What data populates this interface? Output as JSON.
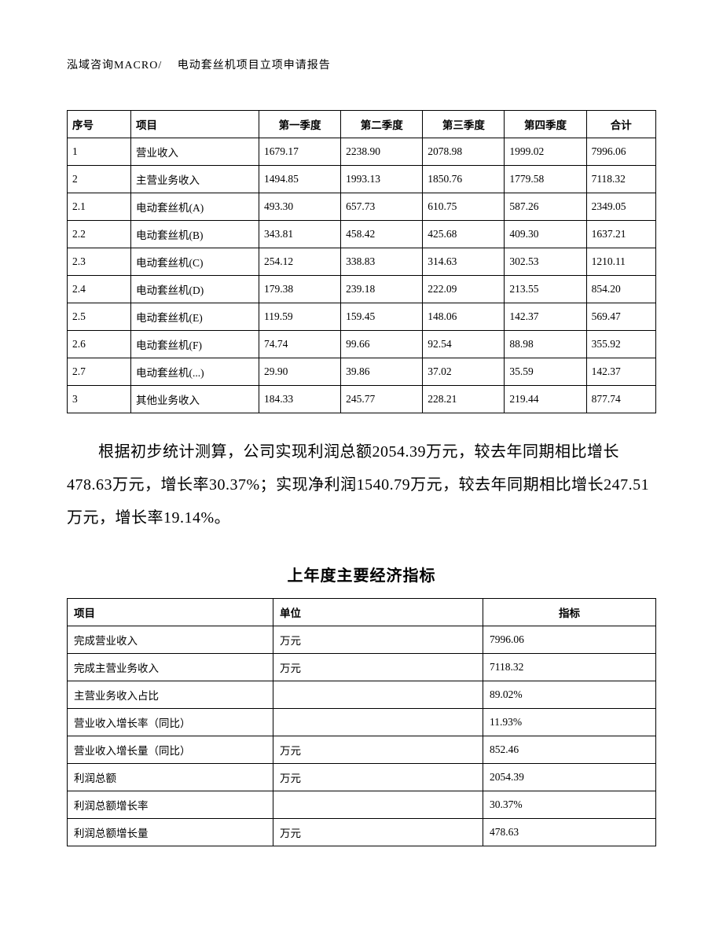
{
  "header": "泓域咨询MACRO/　 电动套丝机项目立项申请报告",
  "table1": {
    "headers": [
      "序号",
      "项目",
      "第一季度",
      "第二季度",
      "第三季度",
      "第四季度",
      "合计"
    ],
    "rows": [
      [
        "1",
        "营业收入",
        "1679.17",
        "2238.90",
        "2078.98",
        "1999.02",
        "7996.06"
      ],
      [
        "2",
        "主营业务收入",
        "1494.85",
        "1993.13",
        "1850.76",
        "1779.58",
        "7118.32"
      ],
      [
        "2.1",
        "电动套丝机(A)",
        "493.30",
        "657.73",
        "610.75",
        "587.26",
        "2349.05"
      ],
      [
        "2.2",
        "电动套丝机(B)",
        "343.81",
        "458.42",
        "425.68",
        "409.30",
        "1637.21"
      ],
      [
        "2.3",
        "电动套丝机(C)",
        "254.12",
        "338.83",
        "314.63",
        "302.53",
        "1210.11"
      ],
      [
        "2.4",
        "电动套丝机(D)",
        "179.38",
        "239.18",
        "222.09",
        "213.55",
        "854.20"
      ],
      [
        "2.5",
        "电动套丝机(E)",
        "119.59",
        "159.45",
        "148.06",
        "142.37",
        "569.47"
      ],
      [
        "2.6",
        "电动套丝机(F)",
        "74.74",
        "99.66",
        "92.54",
        "88.98",
        "355.92"
      ],
      [
        "2.7",
        "电动套丝机(...)",
        "29.90",
        "39.86",
        "37.02",
        "35.59",
        "142.37"
      ],
      [
        "3",
        "其他业务收入",
        "184.33",
        "245.77",
        "228.21",
        "219.44",
        "877.74"
      ]
    ]
  },
  "paragraph": "根据初步统计测算，公司实现利润总额2054.39万元，较去年同期相比增长478.63万元，增长率30.37%；实现净利润1540.79万元，较去年同期相比增长247.51万元，增长率19.14%。",
  "section_title": "上年度主要经济指标",
  "table2": {
    "headers": [
      "项目",
      "单位",
      "指标"
    ],
    "rows": [
      [
        "完成营业收入",
        "万元",
        "7996.06"
      ],
      [
        "完成主营业务收入",
        "万元",
        "7118.32"
      ],
      [
        "主营业务收入占比",
        "",
        "89.02%"
      ],
      [
        "营业收入增长率（同比）",
        "",
        "11.93%"
      ],
      [
        "营业收入增长量（同比）",
        "万元",
        "852.46"
      ],
      [
        "利润总额",
        "万元",
        "2054.39"
      ],
      [
        "利润总额增长率",
        "",
        "30.37%"
      ],
      [
        "利润总额增长量",
        "万元",
        "478.63"
      ]
    ]
  }
}
